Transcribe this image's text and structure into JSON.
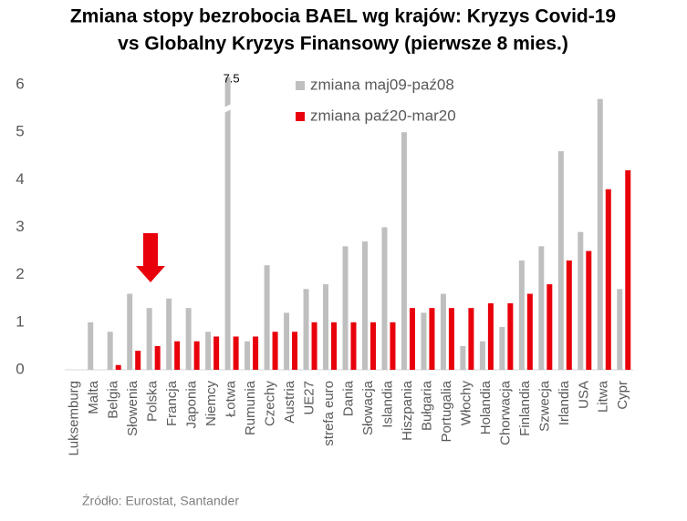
{
  "chart_data": {
    "type": "bar",
    "title": [
      "Zmiana stopy bezrobocia BAEL wg krajów: Kryzys Covid-19",
      "vs Globalny Kryzys Finansowy (pierwsze 8 mies.)"
    ],
    "categories": [
      "Luksemburg",
      "Malta",
      "Belgia",
      "Słowenia",
      "Polska",
      "Francja",
      "Japonia",
      "Niemcy",
      "Łotwa",
      "Rumunia",
      "Czechy",
      "Austria",
      "UE27",
      "strefa euro",
      "Dania",
      "Słowacja",
      "Islandia",
      "Hiszpania",
      "Bułgaria",
      "Portugalia",
      "Włochy",
      "Holandia",
      "Chorwacja",
      "Finlandia",
      "Szwecja",
      "Irlandia",
      "USA",
      "Litwa",
      "Cypr"
    ],
    "series": [
      {
        "name": "zmiana maj09-paź08",
        "color": "#bfbfbf",
        "values": [
          0,
          1.0,
          0.8,
          1.6,
          1.3,
          1.5,
          1.3,
          0.8,
          7.5,
          0.6,
          2.2,
          1.2,
          1.7,
          1.8,
          2.6,
          2.7,
          3.0,
          5.0,
          1.2,
          1.6,
          0.5,
          0.6,
          0.9,
          2.3,
          2.6,
          4.6,
          2.9,
          5.7,
          1.7
        ]
      },
      {
        "name": "zmiana paź20-mar20",
        "color": "#e8000b",
        "values": [
          0,
          0,
          0.1,
          0.4,
          0.5,
          0.6,
          0.6,
          0.7,
          0.7,
          0.7,
          0.8,
          0.8,
          1.0,
          1.0,
          1.0,
          1.0,
          1.0,
          1.3,
          1.3,
          1.3,
          1.3,
          1.4,
          1.4,
          1.6,
          1.8,
          2.3,
          2.5,
          3.8,
          4.2
        ]
      }
    ],
    "ylim": [
      0,
      6
    ],
    "yticks": [
      0,
      1,
      2,
      3,
      4,
      5,
      6
    ],
    "grid": false,
    "axis_break": true,
    "legend": "top-center",
    "source": "Źródło:  Eurostat,  Santander"
  }
}
